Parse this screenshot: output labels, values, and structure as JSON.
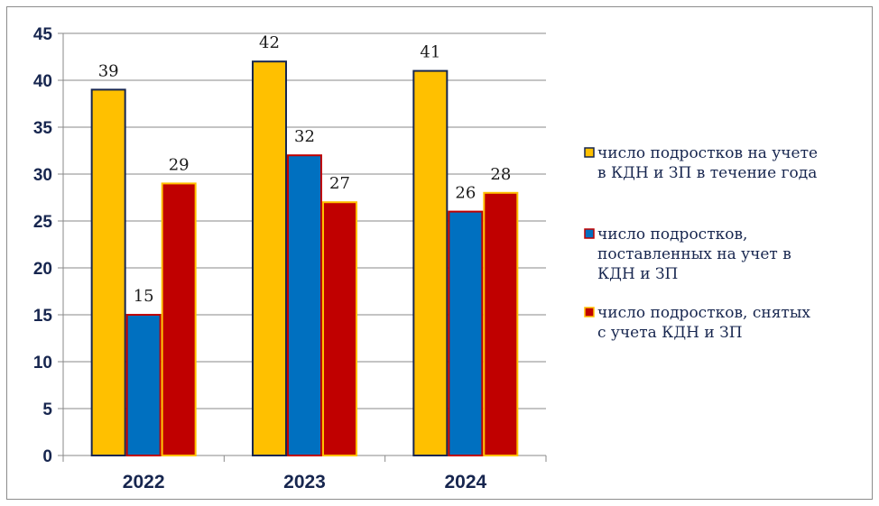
{
  "chart_data": {
    "type": "bar",
    "categories": [
      "2022",
      "2023",
      "2024"
    ],
    "series": [
      {
        "name": "число подростков на учете в КДН и ЗП в течение года",
        "values": [
          39,
          42,
          41
        ],
        "fill": "#ffc000",
        "border": "#17264f",
        "legend_icon_fill": "#ffc000",
        "legend_icon_border": "#17264f"
      },
      {
        "name": "число подростков, поставленных на учет в КДН и ЗП",
        "values": [
          15,
          32,
          26
        ],
        "fill": "#0070c0",
        "border": "#c00000",
        "legend_icon_fill": "#0070c0",
        "legend_icon_border": "#c00000"
      },
      {
        "name": "число подростков, снятых с учета КДН и ЗП",
        "values": [
          29,
          27,
          28
        ],
        "fill": "#c00000",
        "border": "#ffc000",
        "legend_icon_fill": "#c00000",
        "legend_icon_border": "#ffc000"
      }
    ],
    "legend_lines": [
      [
        "число подростков на учете",
        "в КДН и ЗП в течение года"
      ],
      [
        "число подростков,",
        "поставленных на учет в",
        "КДН и ЗП"
      ],
      [
        "число подростков, снятых",
        "с учета КДН и ЗП"
      ]
    ],
    "title": "",
    "xlabel": "",
    "ylabel": "",
    "ylim": [
      0,
      45
    ],
    "yticks": [
      0,
      5,
      10,
      15,
      20,
      25,
      30,
      35,
      40,
      45
    ],
    "grid": true,
    "legend_position": "right",
    "data_labels": true
  }
}
